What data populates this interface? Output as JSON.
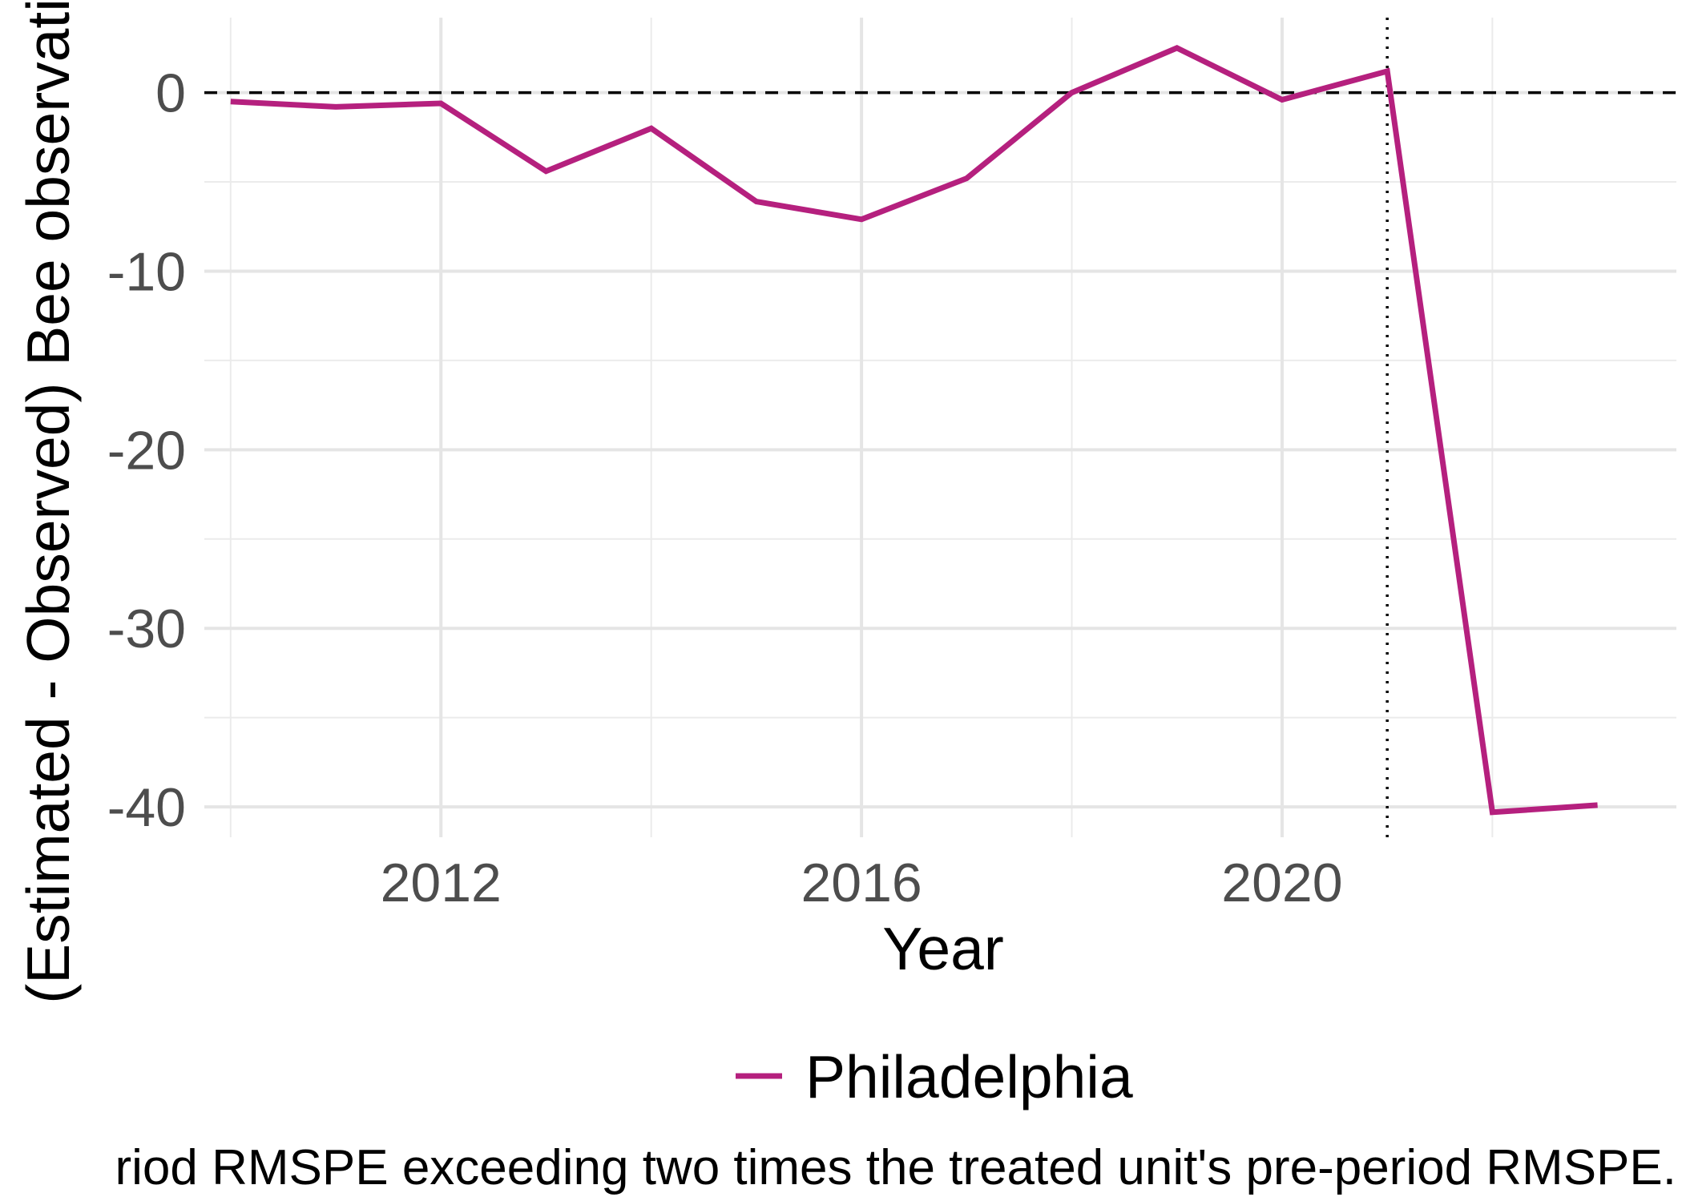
{
  "chart_data": {
    "type": "line",
    "title": "",
    "xlabel": "Year",
    "ylabel": "(Estimated - Observed) Bee observations",
    "x": [
      2010,
      2011,
      2012,
      2013,
      2014,
      2015,
      2016,
      2017,
      2018,
      2019,
      2020,
      2021,
      2022,
      2023
    ],
    "series": [
      {
        "name": "Philadelphia",
        "values": [
          -0.5,
          -0.8,
          -0.6,
          -4.4,
          -2.0,
          -6.1,
          -7.1,
          -4.8,
          0.0,
          2.5,
          -0.4,
          1.2,
          -40.3,
          -39.9
        ],
        "color": "#b5207e"
      }
    ],
    "xlim": [
      2009.75,
      2023.75
    ],
    "ylim": [
      -41.7,
      4.2
    ],
    "x_ticks": [
      2012,
      2016,
      2020
    ],
    "x_tick_labels": [
      "2012",
      "2016",
      "2020"
    ],
    "x_minor_ticks": [
      2010,
      2014,
      2018,
      2022
    ],
    "y_ticks": [
      0,
      -10,
      -20,
      -30,
      -40
    ],
    "y_tick_labels": [
      "0",
      "-10",
      "-20",
      "-30",
      "-40"
    ],
    "y_minor_ticks": [
      -5,
      -15,
      -25,
      -35
    ],
    "reference_lines": {
      "horizontal": {
        "value": 0,
        "style": "dashed",
        "color": "#000000"
      },
      "vertical": {
        "value": 2021,
        "style": "dotted",
        "color": "#000000"
      }
    },
    "grid": true,
    "legend_position": "bottom",
    "caption": "riod RMSPE exceeding two times the treated unit's pre-period RMSPE."
  }
}
